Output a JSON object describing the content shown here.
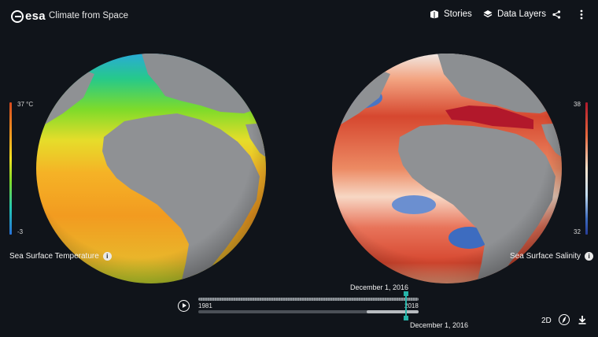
{
  "header": {
    "logo": "esa",
    "title": "Climate from Space",
    "stories_label": "Stories",
    "data_layers_label": "Data Layers"
  },
  "layers": {
    "left": {
      "name": "Sea Surface Temperature",
      "max": "37 °C",
      "min": "-3",
      "colors": [
        "#d84a1f",
        "#f29b20",
        "#f5e020",
        "#7edb2a",
        "#22c7b4",
        "#2770d8"
      ]
    },
    "right": {
      "name": "Sea Surface Salinity",
      "max": "38",
      "min": "32",
      "colors": [
        "#b2182b",
        "#e7683d",
        "#fbe5cd",
        "#c4def0",
        "#3d6cc0",
        "#273d98"
      ]
    }
  },
  "timeline": {
    "start_year": "1981",
    "end_year": "2018",
    "date_top": "December 1, 2016",
    "date_bottom": "December 1, 2016",
    "accent": "#26b3a8"
  },
  "controls": {
    "view_mode": "2D"
  },
  "icons": {
    "stories": "stories-icon",
    "layers": "layers-icon",
    "share": "share-icon",
    "more": "more-icon",
    "play": "play-icon",
    "compass": "compass-icon",
    "download": "download-icon",
    "info": "info-icon"
  }
}
